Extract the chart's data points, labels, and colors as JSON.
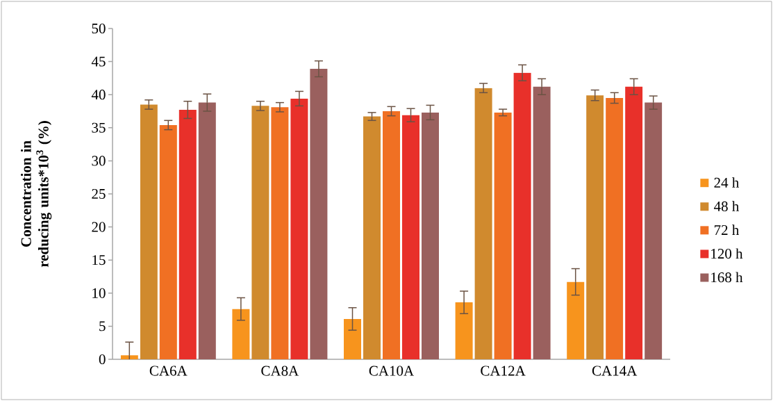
{
  "chart_data": {
    "type": "bar",
    "ylabel": "Concentration in reducing units*10$^{3}$ (%)",
    "categories": [
      "CA6A",
      "CA8A",
      "CA10A",
      "CA12A",
      "CA14A"
    ],
    "series": [
      {
        "name": "24 h",
        "color": "#f7941d",
        "values": [
          0.6,
          7.6,
          6.1,
          8.6,
          11.7
        ],
        "errors": [
          2.0,
          1.7,
          1.7,
          1.7,
          2.0
        ]
      },
      {
        "name": "48 h",
        "color": "#d08a2e",
        "values": [
          38.5,
          38.3,
          36.7,
          41.0,
          39.9
        ],
        "errors": [
          0.7,
          0.7,
          0.6,
          0.7,
          0.8
        ]
      },
      {
        "name": "72 h",
        "color": "#f07023",
        "values": [
          35.4,
          38.1,
          37.5,
          37.3,
          39.5
        ],
        "errors": [
          0.7,
          0.7,
          0.7,
          0.5,
          0.8
        ]
      },
      {
        "name": "120 h",
        "color": "#e8302a",
        "values": [
          37.7,
          39.4,
          36.9,
          43.3,
          41.2
        ],
        "errors": [
          1.3,
          1.1,
          1.0,
          1.2,
          1.2
        ]
      },
      {
        "name": "168 h",
        "color": "#9a605e",
        "values": [
          38.8,
          43.9,
          37.3,
          41.2,
          38.8
        ],
        "errors": [
          1.3,
          1.2,
          1.1,
          1.2,
          1.0
        ]
      }
    ],
    "ylim": [
      0,
      50
    ],
    "yticks": [
      0,
      5,
      10,
      15,
      20,
      25,
      30,
      35,
      40,
      45,
      50
    ],
    "grid": false,
    "legend": "right"
  }
}
